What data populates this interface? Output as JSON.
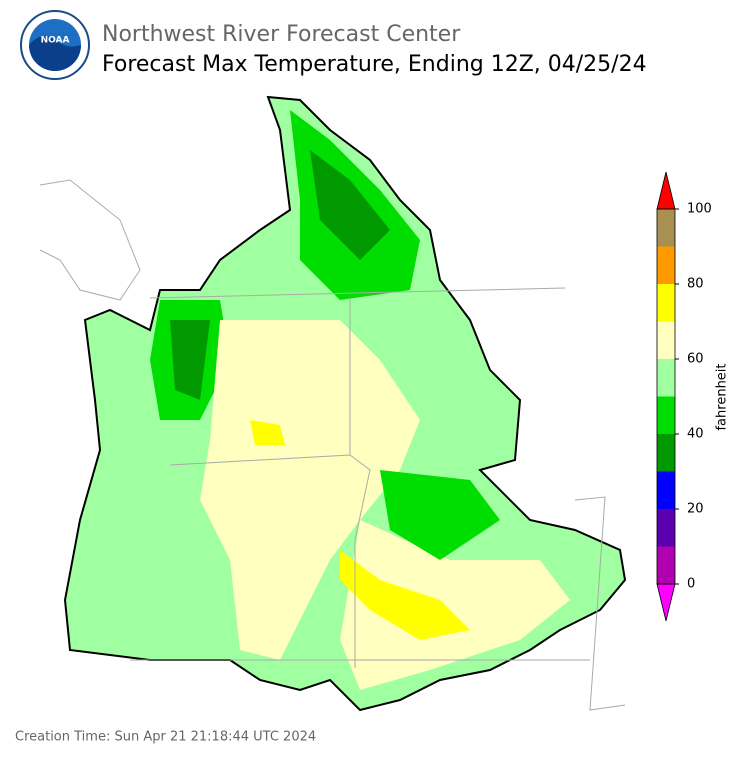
{
  "header": {
    "title": "Northwest River Forecast Center",
    "subtitle": "Forecast Max Temperature, Ending 12Z, 04/25/24"
  },
  "colorbar": {
    "label": "fahrenheit",
    "lim": [
      0,
      100
    ],
    "ticks": [
      0,
      20,
      40,
      60,
      80,
      100
    ],
    "bounds": [
      0,
      10,
      20,
      30,
      40,
      50,
      60,
      70,
      80,
      90,
      100
    ],
    "colors": [
      "#b000b0",
      "#5a00b0",
      "#0000ff",
      "#009a00",
      "#00dd00",
      "#a0ffa0",
      "#ffffc0",
      "#ffff00",
      "#ff9900",
      "#a89050"
    ],
    "under_color": "#ff00ff",
    "over_color": "#ff0000"
  },
  "footer": {
    "creation_time": "Creation Time: Sun Apr 21 21:18:44 UTC 2024"
  }
}
